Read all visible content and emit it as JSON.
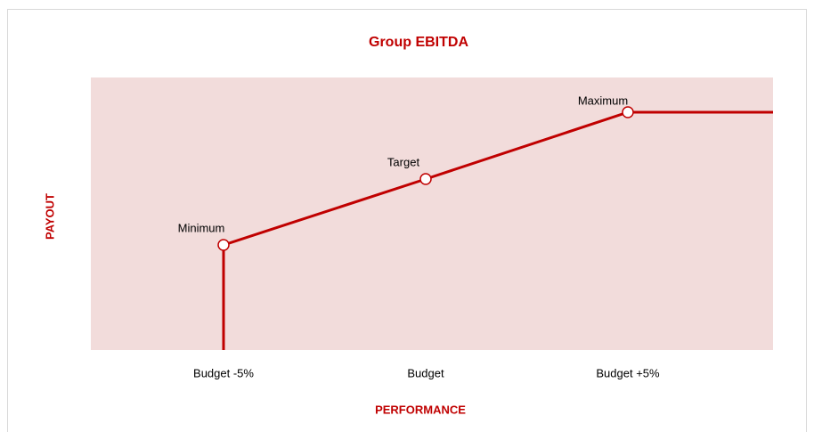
{
  "chart_data": {
    "type": "line",
    "title": "Group EBITDA",
    "xlabel": "PERFORMANCE",
    "ylabel": "PAYOUT",
    "categories": [
      "Budget -5%",
      "Budget",
      "Budget +5%"
    ],
    "point_labels": [
      "Minimum",
      "Target",
      "Maximum"
    ],
    "color": "#c00000",
    "background": "#f2dcdb"
  }
}
